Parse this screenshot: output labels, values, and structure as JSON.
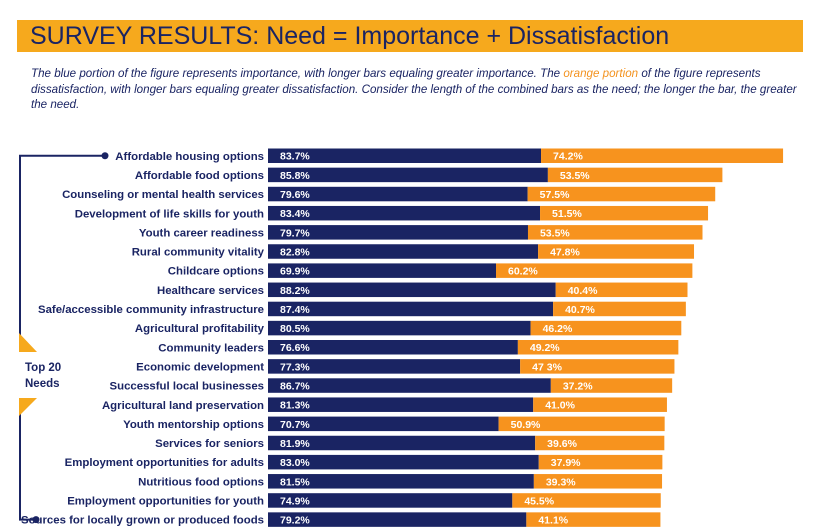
{
  "header": {
    "title": "SURVEY RESULTS: Need = Importance + Dissatisfaction",
    "subtitle_part1": "The blue portion of the figure represents importance, with longer bars equaling greater importance. The ",
    "subtitle_orange": "orange portion",
    "subtitle_part2": " of the figure represents dissatisfaction, with longer bars equaling greater dissatisfaction. Consider the length of the combined bars as the need; the longer the bar, the greater the need."
  },
  "side_label": {
    "line1": "Top 20",
    "line2": "Needs"
  },
  "colors": {
    "importance": "#1a2463",
    "dissatisfaction": "#f7931e",
    "title_bg": "#f6a91d",
    "text": "#1a2463"
  },
  "chart_data": {
    "type": "bar",
    "orientation": "horizontal",
    "stacked": true,
    "categories": [
      "Affordable housing options",
      "Affordable food options",
      "Counseling or mental health services",
      "Development of life skills for youth",
      "Youth career readiness",
      "Rural community vitality",
      "Childcare options",
      "Healthcare services",
      "Safe/accessible community infrastructure",
      "Agricultural profitability",
      "Community leaders",
      "Economic development",
      "Successful local businesses",
      "Agricultural land preservation",
      "Youth mentorship options",
      "Services for seniors",
      "Employment opportunities for adults",
      "Nutritious food options",
      "Employment opportunities for youth",
      "Sources for locally grown or produced foods"
    ],
    "series": [
      {
        "key": "importance",
        "values": [
          83.7,
          85.8,
          79.6,
          83.4,
          79.7,
          82.8,
          69.9,
          88.2,
          87.4,
          80.5,
          76.6,
          77.3,
          86.7,
          81.3,
          70.7,
          81.9,
          83.0,
          81.5,
          74.9,
          79.2
        ],
        "labels": [
          "83.7%",
          "85.8%",
          "79.6%",
          "83.4%",
          "79.7%",
          "82.8%",
          "69.9%",
          "88.2%",
          "87.4%",
          "80.5%",
          "76.6%",
          "77.3%",
          "86.7%",
          "81.3%",
          "70.7%",
          "81.9%",
          "83.0%",
          "81.5%",
          "74.9%",
          "79.2%"
        ]
      },
      {
        "key": "dissatisfaction",
        "values": [
          74.2,
          53.5,
          57.5,
          51.5,
          53.5,
          47.8,
          60.2,
          40.4,
          40.7,
          46.2,
          49.2,
          47.3,
          37.2,
          41.0,
          50.9,
          39.6,
          37.9,
          39.3,
          45.5,
          41.1
        ],
        "labels": [
          "74.2%",
          "53.5%",
          "57.5%",
          "51.5%",
          "53.5%",
          "47.8%",
          "60.2%",
          "40.4%",
          "40.7%",
          "46.2%",
          "49.2%",
          "47 3%",
          "37.2%",
          "41.0%",
          "50.9%",
          "39.6%",
          "37.9%",
          "39.3%",
          "45.5%",
          "41.1%"
        ]
      }
    ],
    "legend": "none",
    "grid": false
  }
}
